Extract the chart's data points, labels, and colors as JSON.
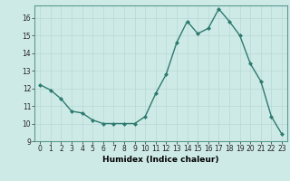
{
  "x": [
    0,
    1,
    2,
    3,
    4,
    5,
    6,
    7,
    8,
    9,
    10,
    11,
    12,
    13,
    14,
    15,
    16,
    17,
    18,
    19,
    20,
    21,
    22,
    23
  ],
  "y": [
    12.2,
    11.9,
    11.4,
    10.7,
    10.6,
    10.2,
    10.0,
    10.0,
    10.0,
    10.0,
    10.4,
    11.7,
    12.8,
    14.6,
    15.8,
    15.1,
    15.4,
    16.5,
    15.8,
    15.0,
    13.4,
    12.4,
    10.4,
    9.4
  ],
  "line_color": "#2d7a6e",
  "marker": "D",
  "marker_size": 2.0,
  "bg_color": "#ceeae7",
  "grid_color_major": "#b8d8d5",
  "grid_color_minor": "#ccd8d6",
  "xlabel": "Humidex (Indice chaleur)",
  "xlim": [
    -0.5,
    23.5
  ],
  "ylim": [
    9,
    16.7
  ],
  "yticks": [
    9,
    10,
    11,
    12,
    13,
    14,
    15,
    16
  ],
  "xticks": [
    0,
    1,
    2,
    3,
    4,
    5,
    6,
    7,
    8,
    9,
    10,
    11,
    12,
    13,
    14,
    15,
    16,
    17,
    18,
    19,
    20,
    21,
    22,
    23
  ],
  "tick_fontsize": 5.5,
  "xlabel_fontsize": 6.5,
  "line_width": 1.0
}
